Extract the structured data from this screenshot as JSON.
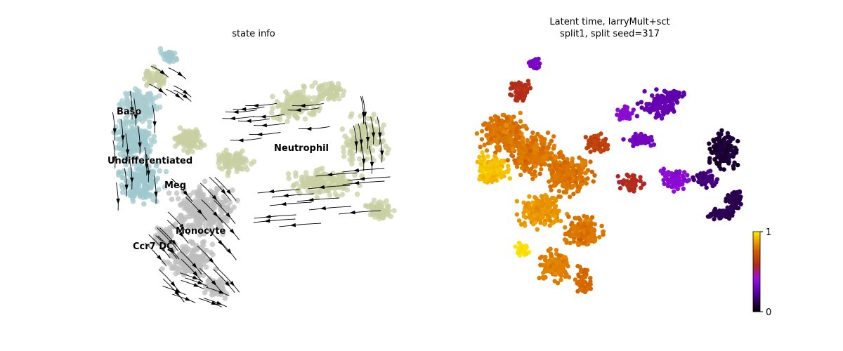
{
  "chart_data": [
    {
      "type": "scatter",
      "subtype": "embedding-with-velocity-streamlines",
      "title": "state info",
      "legend": "on-data",
      "grid": false,
      "axes_visible": false,
      "clusters": [
        {
          "name": "Baso",
          "color": "#a8ccd0"
        },
        {
          "name": "Undifferentiated",
          "color": "#9fc8ce"
        },
        {
          "name": "Meg",
          "color": "#9fc8ce"
        },
        {
          "name": "Neutrophil",
          "color": "#c8cfa2"
        },
        {
          "name": "Monocyte",
          "color": "#bdbdbd"
        },
        {
          "name": "Ccr7 DC",
          "color": "#b0b0b0"
        }
      ],
      "streamline_color": "#000000"
    },
    {
      "type": "scatter",
      "subtype": "embedding-colored-by-continuous-value",
      "title_lines": [
        "Latent time, larryMult+sct",
        "split1, split seed=317"
      ],
      "colormap": "gnuplot",
      "colorbar": {
        "min": 0,
        "max": 1,
        "ticks": [
          "0",
          "1"
        ]
      },
      "grid": false,
      "axes_visible": false,
      "point_color_regions": [
        {
          "region": "left-main-body",
          "value_range": [
            0.75,
            1.0
          ]
        },
        {
          "region": "top-left-tip",
          "value_range": [
            0.3,
            0.35
          ]
        },
        {
          "region": "neutrophil-branches",
          "value_range": [
            0.0,
            0.45
          ]
        }
      ]
    }
  ]
}
